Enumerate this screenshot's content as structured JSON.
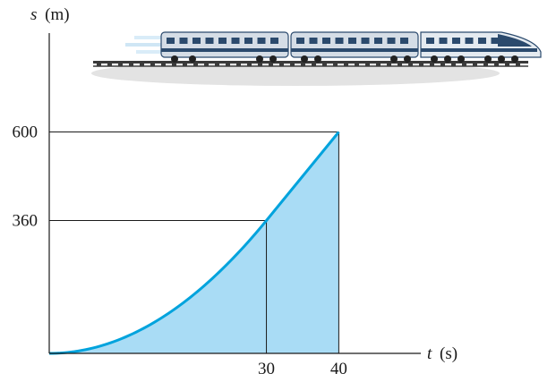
{
  "figure": {
    "colors": {
      "curve": "#00a3dd",
      "fill": "#a9dcf5",
      "axis": "#1a1a1a",
      "guide": "#1a1a1a",
      "train_body": "#d5dde6",
      "train_window": "#2b4a6d",
      "track": "#3a3a3a",
      "ground": "#d8d8d8"
    },
    "illustration": "train-icon"
  },
  "chart_data": {
    "type": "line",
    "xlabel_var": "t",
    "xlabel_unit": "(s)",
    "ylabel_var": "s",
    "ylabel_unit": "(m)",
    "xlim": [
      0,
      52
    ],
    "ylim": [
      0,
      770
    ],
    "x_ticks": [
      30,
      40
    ],
    "y_ticks": [
      360,
      600
    ],
    "x_tick_labels": [
      "30",
      "40"
    ],
    "y_tick_labels": [
      "360",
      "600"
    ],
    "series": [
      {
        "segment": "parabolic",
        "x": [
          0,
          5,
          10,
          15,
          20,
          25,
          30
        ],
        "y": [
          0,
          10,
          40,
          90,
          160,
          250,
          360
        ]
      },
      {
        "segment": "linear",
        "x": [
          30,
          40
        ],
        "y": [
          360,
          600
        ]
      }
    ],
    "shaded_region": {
      "from_x": 0,
      "to_x": 40
    },
    "guides": [
      {
        "x": 30,
        "y": 360
      },
      {
        "x": 40,
        "y": 600
      }
    ],
    "grid": false,
    "legend": "none"
  }
}
